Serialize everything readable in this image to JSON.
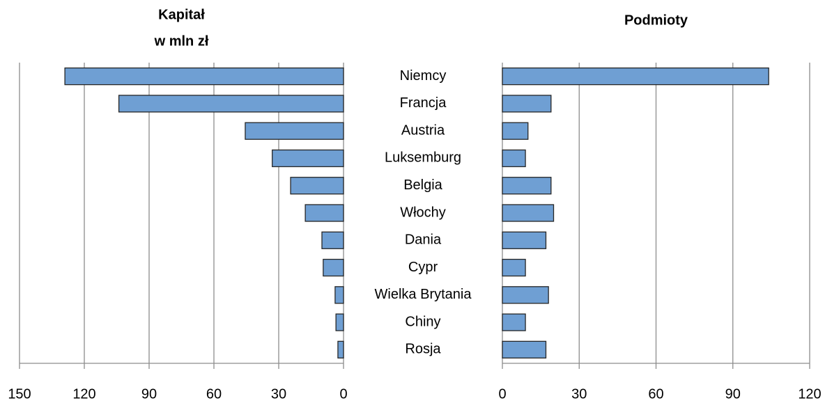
{
  "chart_data": [
    {
      "type": "bar",
      "orientation": "horizontal",
      "reversed": true,
      "title": [
        "Kapitał",
        "w mln zł"
      ],
      "categories": [
        "Niemcy",
        "Francja",
        "Austria",
        "Luksemburg",
        "Belgia",
        "Włochy",
        "Dania",
        "Cypr",
        "Wielka Brytania",
        "Chiny",
        "Rosja"
      ],
      "values": [
        129,
        104,
        45.5,
        33,
        24.5,
        17.7,
        10,
        9.4,
        3.9,
        3.5,
        2.6
      ],
      "color": "#6f9fd3",
      "xlim": [
        0,
        150
      ],
      "xticks": [
        0,
        30,
        60,
        90,
        120,
        150
      ],
      "grid": true
    },
    {
      "type": "bar",
      "orientation": "horizontal",
      "reversed": false,
      "title": [
        "Podmioty"
      ],
      "values": [
        104,
        19,
        10,
        9,
        19,
        20,
        17,
        9,
        18,
        9,
        17
      ],
      "color": "#6f9fd3",
      "xlim": [
        0,
        120
      ],
      "xticks": [
        0,
        30,
        60,
        90,
        120
      ],
      "grid": true
    }
  ]
}
